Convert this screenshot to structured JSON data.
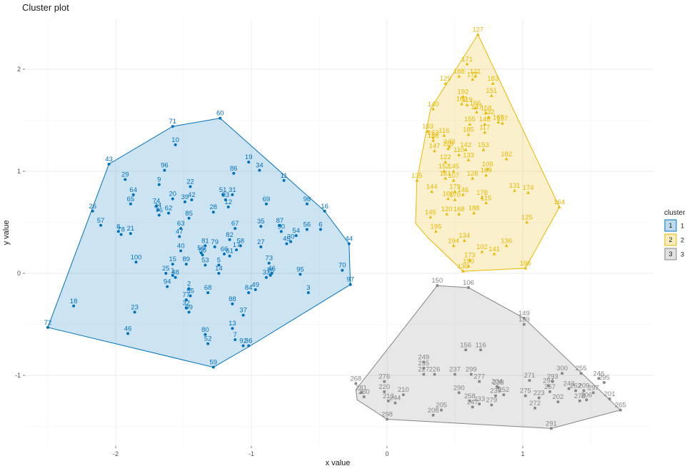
{
  "chart_data": {
    "type": "scatter",
    "title": "Cluster plot",
    "xlabel": "x value",
    "ylabel": "y value",
    "xlim": [
      -2.55,
      1.75
    ],
    "ylim": [
      -1.6,
      2.38
    ],
    "x_ticks": [
      -2,
      -1,
      0,
      1
    ],
    "x_tick_labels": [
      "-2",
      "-1",
      "0",
      "1"
    ],
    "y_ticks": [
      -1,
      0,
      1,
      2
    ],
    "y_tick_labels": [
      "-1",
      "0",
      "1",
      "2"
    ],
    "grid": true,
    "legend": {
      "title": "cluster",
      "position": "right"
    },
    "clusters": [
      {
        "name": "1",
        "color": "#0072BD",
        "marker": "circle",
        "hull": [
          [
            -2.5,
            -0.53
          ],
          [
            -2.05,
            1.07
          ],
          [
            -1.58,
            1.44
          ],
          [
            -1.23,
            1.52
          ],
          [
            -0.46,
            0.61
          ],
          [
            -0.28,
            0.29
          ],
          [
            -0.27,
            -0.11
          ],
          [
            -1.02,
            -0.72
          ],
          [
            -1.28,
            -0.92
          ]
        ],
        "points": [
          [
            "72",
            -2.5,
            -0.53
          ],
          [
            "18",
            -2.31,
            -0.32
          ],
          [
            "26",
            -2.17,
            0.61
          ],
          [
            "57",
            -2.11,
            0.47
          ],
          [
            "43",
            -2.05,
            1.07
          ],
          [
            "78",
            -1.96,
            0.38
          ],
          [
            "8",
            -1.98,
            0.41
          ],
          [
            "21",
            -1.89,
            0.39
          ],
          [
            "29",
            -1.93,
            0.92
          ],
          [
            "65",
            -1.89,
            0.68
          ],
          [
            "64",
            -1.87,
            0.77
          ],
          [
            "100",
            -1.85,
            0.11
          ],
          [
            "23",
            -1.86,
            -0.38
          ],
          [
            "46",
            -1.91,
            -0.59
          ],
          [
            "9",
            -1.68,
            0.87
          ],
          [
            "96",
            -1.64,
            1.01
          ],
          [
            "74",
            -1.7,
            0.66
          ],
          [
            "24",
            -1.69,
            0.62
          ],
          [
            "76",
            -1.68,
            0.57
          ],
          [
            "62",
            -1.61,
            0.59
          ],
          [
            "20",
            -1.58,
            0.73
          ],
          [
            "39",
            -1.49,
            0.7
          ],
          [
            "22",
            -1.45,
            0.85
          ],
          [
            "42",
            -1.44,
            0.72
          ],
          [
            "15",
            -1.58,
            0.09
          ],
          [
            "25",
            -1.63,
            0.0
          ],
          [
            "94",
            -1.62,
            -0.13
          ],
          [
            "48",
            -1.56,
            -0.04
          ],
          [
            "1",
            -1.58,
            -0.02
          ],
          [
            "40",
            -1.52,
            0.22
          ],
          [
            "47",
            -1.53,
            0.36
          ],
          [
            "63",
            -1.52,
            0.44
          ],
          [
            "85",
            -1.46,
            0.54
          ],
          [
            "89",
            -1.48,
            0.09
          ],
          [
            "2",
            -1.46,
            -0.15
          ],
          [
            "55",
            -1.45,
            -0.22
          ],
          [
            "77",
            -1.48,
            -0.26
          ],
          [
            "32",
            -1.48,
            -0.34
          ],
          [
            "99",
            -1.46,
            -0.38
          ],
          [
            "71",
            -1.58,
            1.44
          ],
          [
            "10",
            -1.56,
            1.26
          ],
          [
            "60",
            -1.23,
            1.52
          ],
          [
            "86",
            -1.13,
            0.98
          ],
          [
            "51",
            -1.21,
            0.77
          ],
          [
            "31",
            -1.14,
            0.77
          ],
          [
            "93",
            -1.19,
            0.72
          ],
          [
            "12",
            -1.17,
            0.65
          ],
          [
            "28",
            -1.28,
            0.6
          ],
          [
            "81",
            -1.34,
            0.27
          ],
          [
            "79",
            -1.27,
            0.26
          ],
          [
            "56",
            -1.37,
            0.2
          ],
          [
            "58",
            -1.36,
            0.18
          ],
          [
            "53",
            -1.34,
            0.08
          ],
          [
            "5",
            -1.24,
            0.08
          ],
          [
            "14",
            -1.24,
            0.0
          ],
          [
            "68",
            -1.32,
            -0.19
          ],
          [
            "67",
            -1.12,
            0.44
          ],
          [
            "82",
            -1.16,
            0.33
          ],
          [
            "66",
            -1.2,
            0.19
          ],
          [
            "61",
            -1.16,
            0.17
          ],
          [
            "17",
            -1.11,
            0.23
          ],
          [
            "58",
            -1.08,
            0.27
          ],
          [
            "88",
            -1.14,
            -0.3
          ],
          [
            "37",
            -1.06,
            -0.41
          ],
          [
            "84",
            -1.02,
            -0.19
          ],
          [
            "49",
            -0.97,
            -0.16
          ],
          [
            "13",
            -1.14,
            -0.54
          ],
          [
            "7",
            -1.12,
            -0.65
          ],
          [
            "92",
            -1.06,
            -0.71
          ],
          [
            "36",
            -1.02,
            -0.71
          ],
          [
            "80",
            -1.34,
            -0.6
          ],
          [
            "52",
            -1.32,
            -0.69
          ],
          [
            "59",
            -1.28,
            -0.92
          ],
          [
            "19",
            -1.02,
            1.09
          ],
          [
            "34",
            -0.94,
            1.01
          ],
          [
            "11",
            -0.76,
            0.91
          ],
          [
            "69",
            -0.89,
            0.68
          ],
          [
            "35",
            -0.93,
            0.46
          ],
          [
            "27",
            -0.93,
            0.26
          ],
          [
            "73",
            -0.87,
            0.1
          ],
          [
            "46",
            -0.85,
            0.0
          ],
          [
            "76",
            -0.86,
            -0.02
          ],
          [
            "33",
            -0.89,
            -0.04
          ],
          [
            "87",
            -0.79,
            0.47
          ],
          [
            "90",
            -0.78,
            0.41
          ],
          [
            "45",
            -0.74,
            0.29
          ],
          [
            "30",
            -0.71,
            0.31
          ],
          [
            "54",
            -0.67,
            0.37
          ],
          [
            "56",
            -0.59,
            0.43
          ],
          [
            "6",
            -0.49,
            0.43
          ],
          [
            "98",
            -0.59,
            0.68
          ],
          [
            "16",
            -0.46,
            0.61
          ],
          [
            "44",
            -0.28,
            0.29
          ],
          [
            "70",
            -0.33,
            0.03
          ],
          [
            "97",
            -0.27,
            -0.11
          ],
          [
            "95",
            -0.64,
            -0.01
          ],
          [
            "3",
            -0.58,
            -0.19
          ]
        ]
      },
      {
        "name": "2",
        "color": "#E7B800",
        "marker": "triangle",
        "hull": [
          [
            0.67,
            2.34
          ],
          [
            1.27,
            0.65
          ],
          [
            1.02,
            0.05
          ],
          [
            0.56,
            0.02
          ],
          [
            0.3,
            0.35
          ],
          [
            0.21,
            0.49
          ],
          [
            0.22,
            0.91
          ],
          [
            0.32,
            1.61
          ]
        ],
        "points": [
          [
            "127",
            0.67,
            2.34
          ],
          [
            "171",
            0.59,
            2.05
          ],
          [
            "188",
            0.53,
            1.93
          ],
          [
            "121",
            0.65,
            1.93
          ],
          [
            "177",
            0.63,
            1.9
          ],
          [
            "129",
            0.43,
            1.86
          ],
          [
            "183",
            0.78,
            1.86
          ],
          [
            "151",
            0.77,
            1.74
          ],
          [
            "192",
            0.56,
            1.73
          ],
          [
            "162",
            0.55,
            1.66
          ],
          [
            "119",
            0.59,
            1.65
          ],
          [
            "166",
            0.65,
            1.62
          ],
          [
            "140",
            0.34,
            1.61
          ],
          [
            "147",
            0.66,
            1.58
          ],
          [
            "158",
            0.73,
            1.57
          ],
          [
            "132",
            0.75,
            1.53
          ],
          [
            "155",
            0.61,
            1.46
          ],
          [
            "148",
            0.72,
            1.46
          ],
          [
            "167",
            0.82,
            1.48
          ],
          [
            "197",
            0.85,
            1.47
          ],
          [
            "117",
            0.72,
            1.38
          ],
          [
            "185",
            0.6,
            1.36
          ],
          [
            "103",
            0.3,
            1.39
          ],
          [
            "163",
            0.34,
            1.33
          ],
          [
            "116",
            0.42,
            1.35
          ],
          [
            "186",
            0.34,
            1.3
          ],
          [
            "143",
            0.46,
            1.24
          ],
          [
            "118",
            0.45,
            1.22
          ],
          [
            "147",
            0.35,
            1.2
          ],
          [
            "142",
            0.58,
            1.21
          ],
          [
            "153",
            0.71,
            1.21
          ],
          [
            "110",
            0.53,
            1.16
          ],
          [
            "133",
            0.6,
            1.11
          ],
          [
            "182",
            0.88,
            1.12
          ],
          [
            "122",
            0.43,
            1.09
          ],
          [
            "152",
            0.42,
            1.0
          ],
          [
            "145",
            0.49,
            1.0
          ],
          [
            "109",
            0.74,
            1.02
          ],
          [
            "135",
            0.22,
            0.91
          ],
          [
            "144",
            0.33,
            0.8
          ],
          [
            "161",
            0.43,
            0.93
          ],
          [
            "107",
            0.49,
            0.91
          ],
          [
            "128",
            0.63,
            0.93
          ],
          [
            "169",
            0.73,
            0.96
          ],
          [
            "131",
            0.94,
            0.81
          ],
          [
            "174",
            1.04,
            0.79
          ],
          [
            "164",
            1.27,
            0.65
          ],
          [
            "179",
            0.5,
            0.8
          ],
          [
            "146",
            0.56,
            0.77
          ],
          [
            "178",
            0.7,
            0.74
          ],
          [
            "115",
            0.73,
            0.69
          ],
          [
            "160",
            0.45,
            0.73
          ],
          [
            "170",
            0.5,
            0.72
          ],
          [
            "120",
            0.44,
            0.58
          ],
          [
            "168",
            0.53,
            0.58
          ],
          [
            "188",
            0.64,
            0.59
          ],
          [
            "145",
            0.32,
            0.55
          ],
          [
            "125",
            1.03,
            0.5
          ],
          [
            "195",
            0.36,
            0.41
          ],
          [
            "134",
            0.57,
            0.32
          ],
          [
            "194",
            0.49,
            0.27
          ],
          [
            "136",
            0.88,
            0.27
          ],
          [
            "102",
            0.7,
            0.21
          ],
          [
            "141",
            0.79,
            0.19
          ],
          [
            "173",
            0.61,
            0.13
          ],
          [
            "190",
            0.6,
            0.07
          ],
          [
            "130",
            0.56,
            0.02
          ],
          [
            "196",
            1.02,
            0.05
          ]
        ]
      },
      {
        "name": "3",
        "color": "#868686",
        "marker": "square",
        "hull": [
          [
            0.37,
            -0.12
          ],
          [
            0.6,
            -0.14
          ],
          [
            1.01,
            -0.44
          ],
          [
            1.72,
            -1.34
          ],
          [
            1.21,
            -1.52
          ],
          [
            0.0,
            -1.43
          ],
          [
            -0.22,
            -1.24
          ],
          [
            -0.23,
            -1.14
          ]
        ],
        "points": [
          [
            "150",
            0.37,
            -0.12
          ],
          [
            "106",
            0.6,
            -0.14
          ],
          [
            "149",
            1.01,
            -0.44
          ],
          [
            "139",
            1.01,
            -0.5
          ],
          [
            "156",
            0.58,
            -0.75
          ],
          [
            "116",
            0.69,
            -0.75
          ],
          [
            "249",
            0.27,
            -0.87
          ],
          [
            "235",
            0.27,
            -0.93
          ],
          [
            "227",
            0.27,
            -0.99
          ],
          [
            "226",
            0.35,
            -0.99
          ],
          [
            "237",
            0.5,
            -0.99
          ],
          [
            "299",
            0.62,
            -0.99
          ],
          [
            "268",
            -0.23,
            -1.08
          ],
          [
            "276",
            -0.02,
            -1.06
          ],
          [
            "281",
            -0.19,
            -1.17
          ],
          [
            "260",
            -0.17,
            -1.21
          ],
          [
            "220",
            -0.02,
            -1.16
          ],
          [
            "213",
            0.01,
            -1.25
          ],
          [
            "244",
            0.06,
            -1.27
          ],
          [
            "210",
            0.12,
            -1.19
          ],
          [
            "298",
            0.0,
            -1.43
          ],
          [
            "208",
            0.34,
            -1.39
          ],
          [
            "205",
            0.4,
            -1.34
          ],
          [
            "204",
            0.81,
            -1.11
          ],
          [
            "238",
            0.82,
            -1.12
          ],
          [
            "271",
            1.05,
            -1.05
          ],
          [
            "300",
            1.29,
            -0.98
          ],
          [
            "255",
            1.43,
            -0.98
          ],
          [
            "293",
            1.22,
            -1.06
          ],
          [
            "294",
            1.19,
            -1.1
          ],
          [
            "243",
            1.34,
            -1.13
          ],
          [
            "262",
            1.39,
            -1.15
          ],
          [
            "209",
            1.45,
            -1.15
          ],
          [
            "246",
            1.56,
            -1.03
          ],
          [
            "295",
            1.6,
            -1.07
          ],
          [
            "297",
            1.52,
            -1.17
          ],
          [
            "206",
            1.47,
            -1.24
          ],
          [
            "278",
            1.42,
            -1.25
          ],
          [
            "201",
            1.64,
            -1.23
          ],
          [
            "265",
            1.72,
            -1.34
          ],
          [
            "202",
            1.26,
            -1.26
          ],
          [
            "223",
            1.12,
            -1.22
          ],
          [
            "275",
            1.02,
            -1.2
          ],
          [
            "267",
            1.2,
            -1.16
          ],
          [
            "272",
            1.09,
            -1.32
          ],
          [
            "291",
            1.21,
            -1.52
          ],
          [
            "252",
            0.86,
            -1.19
          ],
          [
            "239",
            0.8,
            -1.2
          ],
          [
            "258",
            0.61,
            -1.25
          ],
          [
            "290",
            0.53,
            -1.17
          ],
          [
            "233",
            0.68,
            -1.28
          ],
          [
            "279",
            0.77,
            -1.29
          ],
          [
            "247",
            0.63,
            -1.31
          ],
          [
            "277",
            0.68,
            -1.06
          ]
        ]
      }
    ]
  }
}
